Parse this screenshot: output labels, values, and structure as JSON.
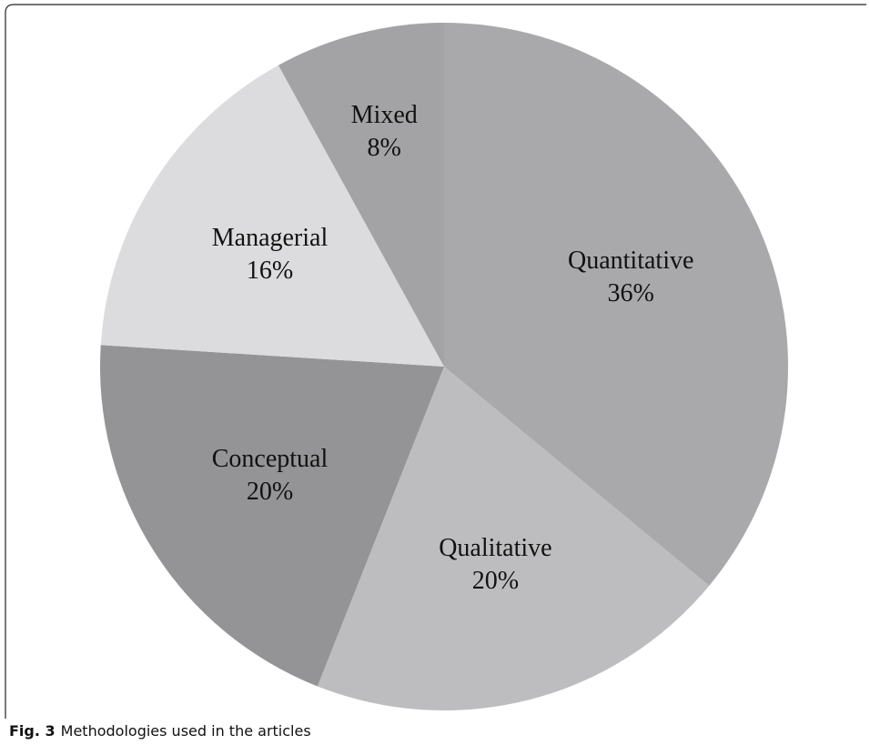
{
  "chart_data": {
    "type": "pie",
    "categories": [
      "Quantitative",
      "Qualitative",
      "Conceptual",
      "Managerial",
      "Mixed"
    ],
    "values": [
      36,
      20,
      20,
      16,
      8
    ],
    "value_labels": [
      "36%",
      "20%",
      "20%",
      "16%",
      "8%"
    ],
    "colors": [
      "#a9a9ab",
      "#bdbdbf",
      "#949496",
      "#dcdcde",
      "#a3a3a5"
    ]
  },
  "caption": {
    "label": "Fig. 3",
    "text": "Methodologies used in the articles"
  }
}
